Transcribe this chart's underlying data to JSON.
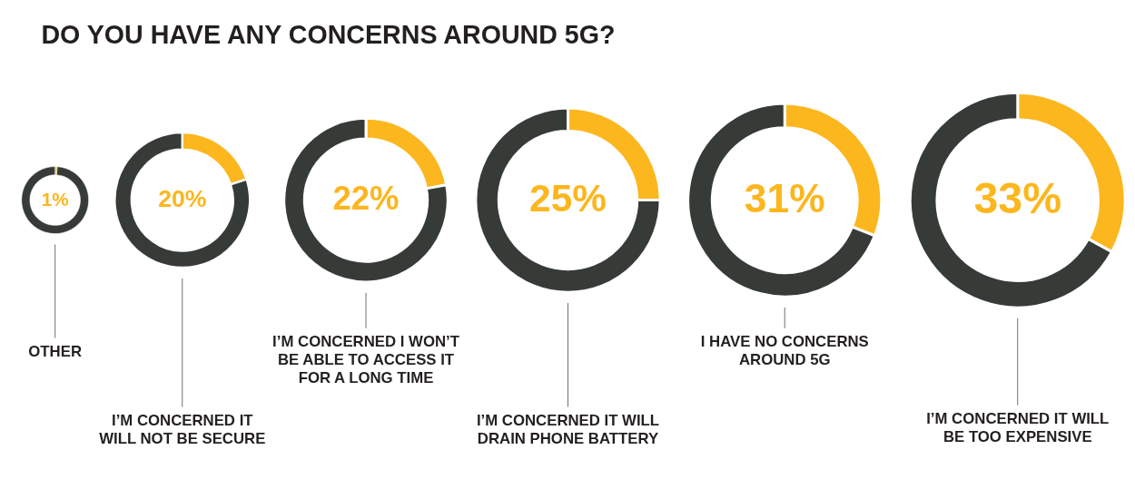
{
  "chart_data": [
    {
      "type": "donut",
      "title": "DO YOU HAVE ANY CONCERNS AROUND 5G?",
      "xlabel": "OTHER",
      "categories": [
        null,
        null
      ],
      "values": [
        1,
        99
      ],
      "colors": [
        "#fcb61e",
        "#363b37"
      ],
      "value_labels": [
        "1%",
        null
      ]
    },
    {
      "type": "donut",
      "xlabel": "I’M CONCERNED IT WILL NOT BE SECURE",
      "categories": [
        null,
        null
      ],
      "values": [
        20,
        80
      ],
      "colors": [
        "#fcb61e",
        "#363b37"
      ],
      "value_labels": [
        "20%",
        null
      ]
    },
    {
      "type": "donut",
      "xlabel": "I’M CONCERNED I WON’T BE ABLE TO ACCESS IT FOR A LONG TIME",
      "categories": [
        null,
        null
      ],
      "values": [
        22,
        78
      ],
      "colors": [
        "#fcb61e",
        "#363b37"
      ],
      "value_labels": [
        "22%",
        null
      ]
    },
    {
      "type": "donut",
      "xlabel": "I’M CONCERNED IT WILL DRAIN PHONE BATTERY",
      "categories": [
        null,
        null
      ],
      "values": [
        25,
        75
      ],
      "colors": [
        "#fcb61e",
        "#363b37"
      ],
      "value_labels": [
        "25%",
        null
      ]
    },
    {
      "type": "donut",
      "xlabel": "I HAVE NO CONCERNS AROUND 5G",
      "categories": [
        null,
        null
      ],
      "values": [
        31,
        69
      ],
      "colors": [
        "#fcb61e",
        "#363b37"
      ],
      "value_labels": [
        "31%",
        null
      ]
    },
    {
      "type": "donut",
      "xlabel": "I’M CONCERNED IT WILL BE TOO EXPENSIVE",
      "categories": [
        null,
        null
      ],
      "values": [
        33,
        67
      ],
      "colors": [
        "#fcb61e",
        "#363b37"
      ],
      "value_labels": [
        "33%",
        null
      ]
    }
  ]
}
